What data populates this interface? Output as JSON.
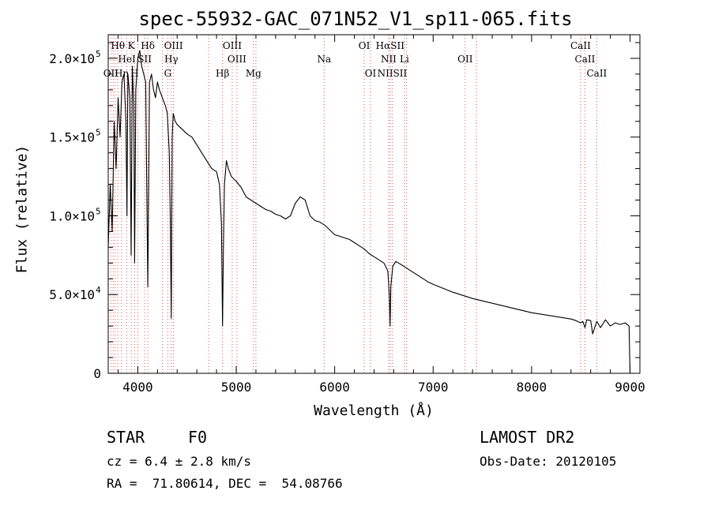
{
  "chart_data": {
    "type": "line",
    "title": "spec-55932-GAC_071N52_V1_sp11-065.fits",
    "xlabel": "Wavelength (Å)",
    "ylabel": "Flux (relative)",
    "xlim": [
      3700,
      9100
    ],
    "ylim": [
      0,
      215000
    ],
    "x_ticks": [
      4000,
      5000,
      6000,
      7000,
      8000,
      9000
    ],
    "y_tick_labels": [
      {
        "value": 0,
        "mantissa": "0",
        "exp": ""
      },
      {
        "value": 50000,
        "mantissa": "5.0×10",
        "exp": "4"
      },
      {
        "value": 100000,
        "mantissa": "1.0×10",
        "exp": "5"
      },
      {
        "value": 150000,
        "mantissa": "1.5×10",
        "exp": "5"
      },
      {
        "value": 200000,
        "mantissa": "2.0×10",
        "exp": "5"
      }
    ],
    "series": [
      {
        "x": [
          3700,
          3720,
          3740,
          3760,
          3780,
          3800,
          3820,
          3840,
          3860,
          3880,
          3890,
          3900,
          3920,
          3933,
          3945,
          3960,
          3968,
          3980,
          4000,
          4020,
          4040,
          4060,
          4080,
          4102,
          4120,
          4140,
          4160,
          4180,
          4200,
          4220,
          4250,
          4280,
          4300,
          4320,
          4330,
          4340,
          4350,
          4360,
          4380,
          4400,
          4450,
          4500,
          4550,
          4600,
          4650,
          4700,
          4750,
          4800,
          4830,
          4850,
          4861,
          4870,
          4880,
          4900,
          4920,
          4950,
          5000,
          5050,
          5100,
          5150,
          5200,
          5250,
          5300,
          5350,
          5400,
          5450,
          5500,
          5550,
          5600,
          5650,
          5700,
          5750,
          5800,
          5850,
          5900,
          5950,
          6000,
          6050,
          6100,
          6150,
          6200,
          6250,
          6300,
          6350,
          6400,
          6450,
          6500,
          6540,
          6555,
          6563,
          6570,
          6590,
          6620,
          6650,
          6700,
          6750,
          6800,
          6850,
          6900,
          6950,
          7000,
          7100,
          7200,
          7300,
          7400,
          7500,
          7600,
          7700,
          7800,
          7900,
          8000,
          8100,
          8200,
          8300,
          8400,
          8450,
          8498,
          8520,
          8542,
          8560,
          8600,
          8620,
          8662,
          8700,
          8750,
          8800,
          8850,
          8900,
          8950,
          8990,
          9000
        ],
        "y": [
          80000,
          120000,
          90000,
          160000,
          130000,
          175000,
          150000,
          185000,
          190000,
          160000,
          100000,
          190000,
          175000,
          75000,
          195000,
          170000,
          70000,
          180000,
          200000,
          205000,
          195000,
          190000,
          185000,
          55000,
          185000,
          190000,
          180000,
          175000,
          185000,
          180000,
          175000,
          170000,
          165000,
          140000,
          100000,
          35000,
          150000,
          165000,
          160000,
          158000,
          155000,
          152000,
          150000,
          145000,
          140000,
          135000,
          130000,
          128000,
          120000,
          95000,
          30000,
          80000,
          120000,
          135000,
          130000,
          125000,
          122000,
          118000,
          112000,
          110000,
          108000,
          106000,
          104000,
          103000,
          101000,
          100000,
          98000,
          100000,
          108000,
          112000,
          110000,
          100000,
          97000,
          96000,
          94000,
          91000,
          88000,
          87000,
          86000,
          85000,
          83000,
          81000,
          79000,
          76000,
          74000,
          72000,
          70000,
          65000,
          50000,
          30000,
          55000,
          68000,
          71000,
          70000,
          68000,
          66000,
          64000,
          62000,
          60000,
          58000,
          56500,
          54000,
          51500,
          49500,
          47500,
          46000,
          44500,
          43000,
          41500,
          40000,
          38500,
          37500,
          36500,
          35500,
          34500,
          33500,
          32000,
          33000,
          29000,
          34000,
          33500,
          25000,
          33000,
          29000,
          34000,
          30000,
          32000,
          31000,
          32000,
          30000,
          0
        ]
      }
    ],
    "lines": [
      {
        "label": "Hθ",
        "wl": 3798,
        "row": 1
      },
      {
        "label": "K",
        "wl": 3934,
        "row": 1
      },
      {
        "label": "Hδ",
        "wl": 4102,
        "row": 1
      },
      {
        "label": "OIII",
        "wl": 4363,
        "row": 1
      },
      {
        "label": "OIII",
        "wl": 4959,
        "row": 1
      },
      {
        "label": "OI",
        "wl": 6300,
        "row": 1
      },
      {
        "label": "HαSII",
        "wl": 6563,
        "row": 1
      },
      {
        "label": "CaII",
        "wl": 8498,
        "row": 1
      },
      {
        "label": "HeI",
        "wl": 3889,
        "row": 2
      },
      {
        "label": "SII",
        "wl": 4070,
        "row": 2
      },
      {
        "label": "Hγ",
        "wl": 4340,
        "row": 2
      },
      {
        "label": "OIII",
        "wl": 5007,
        "row": 2
      },
      {
        "label": "Na",
        "wl": 5893,
        "row": 2
      },
      {
        "label": "NII",
        "wl": 6548,
        "row": 2
      },
      {
        "label": "Li",
        "wl": 6708,
        "row": 2
      },
      {
        "label": "OII",
        "wl": 7325,
        "row": 2
      },
      {
        "label": "CaII",
        "wl": 8542,
        "row": 2
      },
      {
        "label": "OII",
        "wl": 3727,
        "row": 3
      },
      {
        "label": "Hη",
        "wl": 3835,
        "row": 3
      },
      {
        "label": "H",
        "wl": 3968,
        "row": 3
      },
      {
        "label": "G",
        "wl": 4305,
        "row": 3
      },
      {
        "label": "Hβ",
        "wl": 4861,
        "row": 3
      },
      {
        "label": "Mg",
        "wl": 5175,
        "row": 3
      },
      {
        "label": "OI",
        "wl": 6364,
        "row": 3
      },
      {
        "label": "NIISII",
        "wl": 6584,
        "row": 3
      },
      {
        "label": "CaII",
        "wl": 8662,
        "row": 3
      }
    ],
    "extra_marker_wl": [
      3750,
      3771,
      4000,
      4250,
      4720,
      5200,
      6730,
      7440
    ]
  },
  "info": {
    "class_label": "STAR",
    "subclass": "F0",
    "cz": "cz = 6.4 ± 2.8 km/s",
    "radec": "RA =  71.80614, DEC =  54.08766",
    "survey": "LAMOST DR2",
    "obs_date": "Obs-Date: 20120105"
  }
}
